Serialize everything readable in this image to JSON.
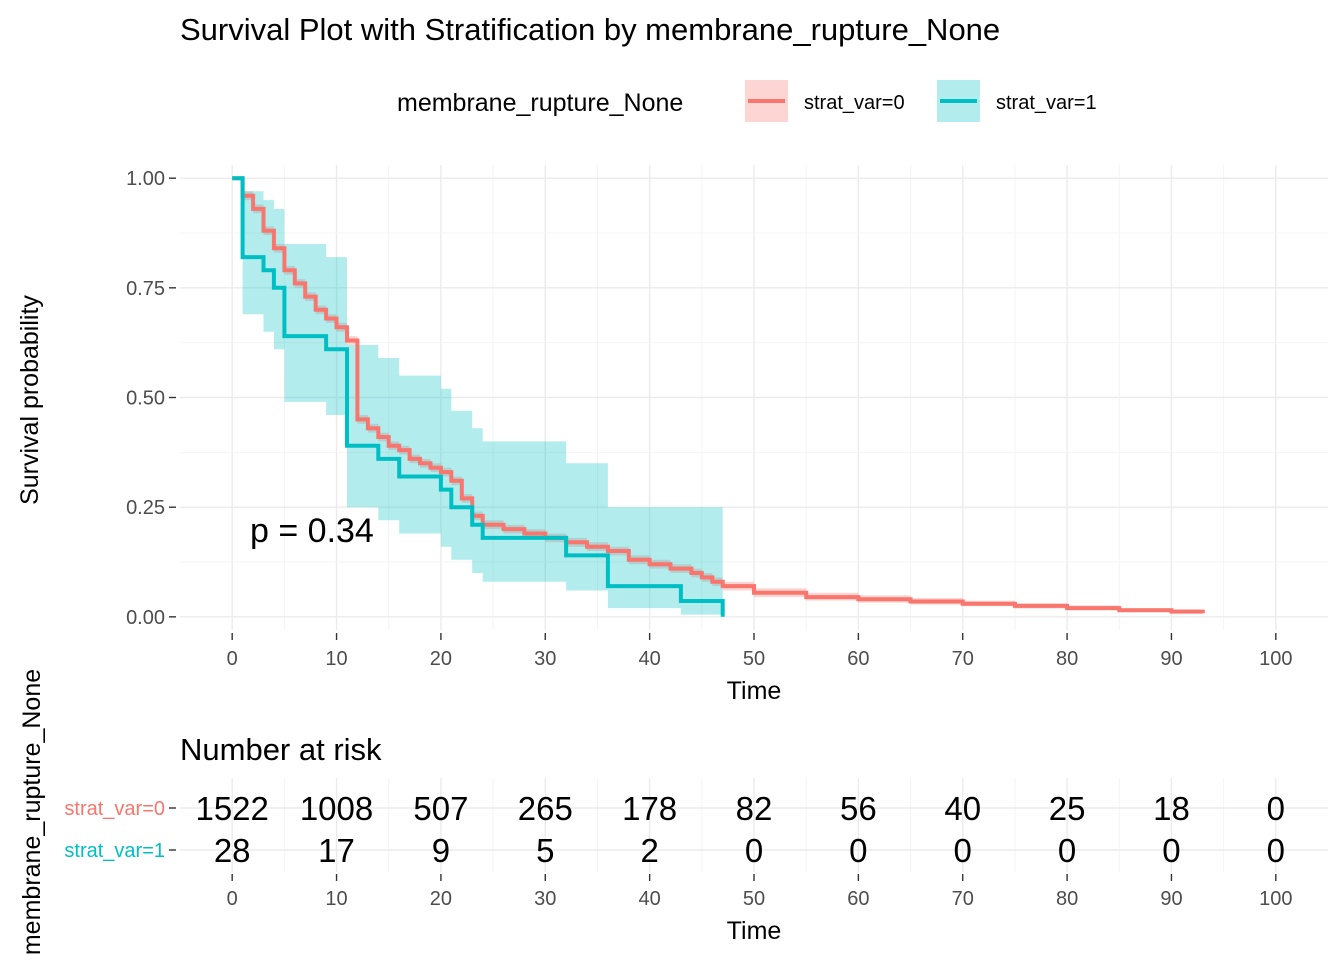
{
  "chart_data": [
    {
      "type": "line",
      "subtype": "kaplan-meier survival curve with confidence bands",
      "title": "Survival Plot with Stratification by membrane_rupture_None",
      "xlabel": "Time",
      "ylabel": "Survival probability",
      "xlim": [
        -5,
        105
      ],
      "ylim": [
        -0.03,
        1.03
      ],
      "x_ticks": [
        0,
        10,
        20,
        30,
        40,
        50,
        60,
        70,
        80,
        90,
        100
      ],
      "y_ticks": [
        0.0,
        0.25,
        0.5,
        0.75,
        1.0
      ],
      "y_tick_labels": [
        "0.00",
        "0.25",
        "0.50",
        "0.75",
        "1.00"
      ],
      "grid": true,
      "legend": {
        "title": "membrane_rupture_None",
        "position": "top",
        "entries": [
          "strat_var=0",
          "strat_var=1"
        ]
      },
      "annotation": "p = 0.34",
      "series": [
        {
          "name": "strat_var=0",
          "color": "#F8766D",
          "x": [
            0,
            1,
            2,
            3,
            4,
            5,
            6,
            7,
            8,
            9,
            10,
            11,
            12,
            13,
            14,
            15,
            16,
            17,
            18,
            19,
            20,
            21,
            22,
            23,
            24,
            26,
            28,
            30,
            32,
            34,
            36,
            38,
            40,
            42,
            44,
            45,
            46,
            47,
            50,
            55,
            60,
            65,
            70,
            75,
            80,
            85,
            90,
            93
          ],
          "y": [
            1.0,
            0.96,
            0.93,
            0.88,
            0.84,
            0.79,
            0.76,
            0.73,
            0.7,
            0.68,
            0.66,
            0.63,
            0.45,
            0.43,
            0.41,
            0.39,
            0.38,
            0.36,
            0.35,
            0.34,
            0.33,
            0.31,
            0.27,
            0.23,
            0.21,
            0.2,
            0.19,
            0.18,
            0.17,
            0.16,
            0.15,
            0.13,
            0.12,
            0.11,
            0.1,
            0.09,
            0.08,
            0.07,
            0.055,
            0.045,
            0.04,
            0.035,
            0.03,
            0.025,
            0.02,
            0.015,
            0.012,
            0.008
          ],
          "lower": [
            1.0,
            0.95,
            0.92,
            0.87,
            0.83,
            0.78,
            0.75,
            0.72,
            0.69,
            0.67,
            0.65,
            0.62,
            0.44,
            0.42,
            0.4,
            0.38,
            0.37,
            0.35,
            0.34,
            0.33,
            0.32,
            0.3,
            0.26,
            0.22,
            0.2,
            0.19,
            0.18,
            0.17,
            0.16,
            0.15,
            0.14,
            0.12,
            0.11,
            0.1,
            0.09,
            0.08,
            0.07,
            0.06,
            0.045,
            0.037,
            0.032,
            0.028,
            0.024,
            0.019,
            0.015,
            0.011,
            0.008,
            0.004
          ],
          "upper": [
            1.0,
            0.97,
            0.94,
            0.89,
            0.85,
            0.8,
            0.77,
            0.74,
            0.71,
            0.69,
            0.67,
            0.64,
            0.46,
            0.44,
            0.42,
            0.4,
            0.39,
            0.37,
            0.36,
            0.35,
            0.34,
            0.32,
            0.28,
            0.24,
            0.22,
            0.21,
            0.2,
            0.19,
            0.18,
            0.17,
            0.16,
            0.14,
            0.13,
            0.12,
            0.11,
            0.1,
            0.09,
            0.08,
            0.065,
            0.055,
            0.049,
            0.043,
            0.037,
            0.031,
            0.026,
            0.02,
            0.017,
            0.013
          ]
        },
        {
          "name": "strat_var=1",
          "color": "#00BFC4",
          "x": [
            0,
            1,
            3,
            4,
            5,
            9,
            11,
            14,
            16,
            20,
            21,
            23,
            24,
            32,
            36,
            43,
            47
          ],
          "y": [
            1.0,
            0.82,
            0.79,
            0.75,
            0.64,
            0.61,
            0.39,
            0.36,
            0.32,
            0.29,
            0.25,
            0.21,
            0.18,
            0.14,
            0.07,
            0.036,
            0.0
          ],
          "lower": [
            1.0,
            0.69,
            0.65,
            0.61,
            0.49,
            0.46,
            0.25,
            0.22,
            0.19,
            0.16,
            0.13,
            0.1,
            0.08,
            0.06,
            0.02,
            0.005,
            0.0
          ],
          "upper": [
            1.0,
            0.97,
            0.95,
            0.93,
            0.85,
            0.82,
            0.62,
            0.59,
            0.55,
            0.52,
            0.47,
            0.43,
            0.4,
            0.35,
            0.25,
            0.25,
            0.25
          ]
        }
      ]
    },
    {
      "type": "table",
      "title": "Number at risk",
      "xlabel": "Time",
      "ylabel": "membrane_rupture_None",
      "x_ticks": [
        0,
        10,
        20,
        30,
        40,
        50,
        60,
        70,
        80,
        90,
        100
      ],
      "rows": [
        {
          "name": "strat_var=0",
          "color": "#F8766D",
          "values": [
            1522,
            1008,
            507,
            265,
            178,
            82,
            56,
            40,
            25,
            18,
            0
          ]
        },
        {
          "name": "strat_var=1",
          "color": "#00BFC4",
          "values": [
            28,
            17,
            9,
            5,
            2,
            0,
            0,
            0,
            0,
            0,
            0
          ]
        }
      ]
    }
  ]
}
